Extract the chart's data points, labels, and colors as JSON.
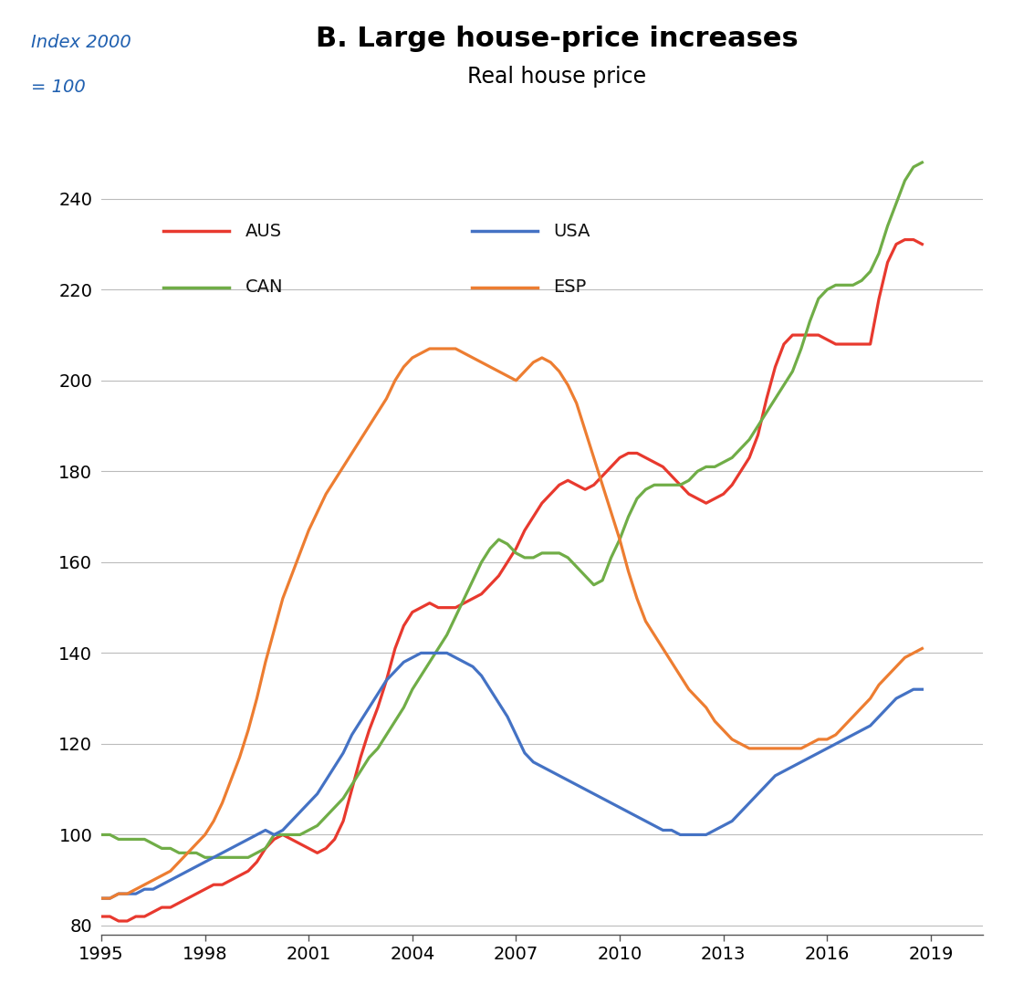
{
  "title": "B. Large house-price increases",
  "subtitle": "Real house price",
  "ylabel_line1": "Index 2000",
  "ylabel_line2": "= 100",
  "title_fontsize": 22,
  "subtitle_fontsize": 17,
  "ylabel_fontsize": 14,
  "tick_fontsize": 14,
  "background_color": "#ffffff",
  "xlim": [
    1995,
    2020.5
  ],
  "ylim": [
    78,
    255
  ],
  "yticks": [
    80,
    100,
    120,
    140,
    160,
    180,
    200,
    220,
    240
  ],
  "xticks": [
    1995,
    1998,
    2001,
    2004,
    2007,
    2010,
    2013,
    2016,
    2019
  ],
  "grid_color": "#bbbbbb",
  "series": {
    "AUS": {
      "color": "#e8392e",
      "linewidth": 2.3,
      "x": [
        1995.0,
        1995.25,
        1995.5,
        1995.75,
        1996.0,
        1996.25,
        1996.5,
        1996.75,
        1997.0,
        1997.25,
        1997.5,
        1997.75,
        1998.0,
        1998.25,
        1998.5,
        1998.75,
        1999.0,
        1999.25,
        1999.5,
        1999.75,
        2000.0,
        2000.25,
        2000.5,
        2000.75,
        2001.0,
        2001.25,
        2001.5,
        2001.75,
        2002.0,
        2002.25,
        2002.5,
        2002.75,
        2003.0,
        2003.25,
        2003.5,
        2003.75,
        2004.0,
        2004.25,
        2004.5,
        2004.75,
        2005.0,
        2005.25,
        2005.5,
        2005.75,
        2006.0,
        2006.25,
        2006.5,
        2006.75,
        2007.0,
        2007.25,
        2007.5,
        2007.75,
        2008.0,
        2008.25,
        2008.5,
        2008.75,
        2009.0,
        2009.25,
        2009.5,
        2009.75,
        2010.0,
        2010.25,
        2010.5,
        2010.75,
        2011.0,
        2011.25,
        2011.5,
        2011.75,
        2012.0,
        2012.25,
        2012.5,
        2012.75,
        2013.0,
        2013.25,
        2013.5,
        2013.75,
        2014.0,
        2014.25,
        2014.5,
        2014.75,
        2015.0,
        2015.25,
        2015.5,
        2015.75,
        2016.0,
        2016.25,
        2016.5,
        2016.75,
        2017.0,
        2017.25,
        2017.5,
        2017.75,
        2018.0,
        2018.25,
        2018.5,
        2018.75
      ],
      "y": [
        82,
        82,
        81,
        81,
        82,
        82,
        83,
        84,
        84,
        85,
        86,
        87,
        88,
        89,
        89,
        90,
        91,
        92,
        94,
        97,
        99,
        100,
        99,
        98,
        97,
        96,
        97,
        99,
        103,
        110,
        117,
        123,
        128,
        134,
        141,
        146,
        149,
        150,
        151,
        150,
        150,
        150,
        151,
        152,
        153,
        155,
        157,
        160,
        163,
        167,
        170,
        173,
        175,
        177,
        178,
        177,
        176,
        177,
        179,
        181,
        183,
        184,
        184,
        183,
        182,
        181,
        179,
        177,
        175,
        174,
        173,
        174,
        175,
        177,
        180,
        183,
        188,
        196,
        203,
        208,
        210,
        210,
        210,
        210,
        209,
        208,
        208,
        208,
        208,
        208,
        218,
        226,
        230,
        231,
        231,
        230
      ]
    },
    "CAN": {
      "color": "#70ad47",
      "linewidth": 2.3,
      "x": [
        1995.0,
        1995.25,
        1995.5,
        1995.75,
        1996.0,
        1996.25,
        1996.5,
        1996.75,
        1997.0,
        1997.25,
        1997.5,
        1997.75,
        1998.0,
        1998.25,
        1998.5,
        1998.75,
        1999.0,
        1999.25,
        1999.5,
        1999.75,
        2000.0,
        2000.25,
        2000.5,
        2000.75,
        2001.0,
        2001.25,
        2001.5,
        2001.75,
        2002.0,
        2002.25,
        2002.5,
        2002.75,
        2003.0,
        2003.25,
        2003.5,
        2003.75,
        2004.0,
        2004.25,
        2004.5,
        2004.75,
        2005.0,
        2005.25,
        2005.5,
        2005.75,
        2006.0,
        2006.25,
        2006.5,
        2006.75,
        2007.0,
        2007.25,
        2007.5,
        2007.75,
        2008.0,
        2008.25,
        2008.5,
        2008.75,
        2009.0,
        2009.25,
        2009.5,
        2009.75,
        2010.0,
        2010.25,
        2010.5,
        2010.75,
        2011.0,
        2011.25,
        2011.5,
        2011.75,
        2012.0,
        2012.25,
        2012.5,
        2012.75,
        2013.0,
        2013.25,
        2013.5,
        2013.75,
        2014.0,
        2014.25,
        2014.5,
        2014.75,
        2015.0,
        2015.25,
        2015.5,
        2015.75,
        2016.0,
        2016.25,
        2016.5,
        2016.75,
        2017.0,
        2017.25,
        2017.5,
        2017.75,
        2018.0,
        2018.25,
        2018.5,
        2018.75
      ],
      "y": [
        100,
        100,
        99,
        99,
        99,
        99,
        98,
        97,
        97,
        96,
        96,
        96,
        95,
        95,
        95,
        95,
        95,
        95,
        96,
        97,
        100,
        100,
        100,
        100,
        101,
        102,
        104,
        106,
        108,
        111,
        114,
        117,
        119,
        122,
        125,
        128,
        132,
        135,
        138,
        141,
        144,
        148,
        152,
        156,
        160,
        163,
        165,
        164,
        162,
        161,
        161,
        162,
        162,
        162,
        161,
        159,
        157,
        155,
        156,
        161,
        165,
        170,
        174,
        176,
        177,
        177,
        177,
        177,
        178,
        180,
        181,
        181,
        182,
        183,
        185,
        187,
        190,
        193,
        196,
        199,
        202,
        207,
        213,
        218,
        220,
        221,
        221,
        221,
        222,
        224,
        228,
        234,
        239,
        244,
        247,
        248
      ]
    },
    "USA": {
      "color": "#4472c4",
      "linewidth": 2.3,
      "x": [
        1995.0,
        1995.25,
        1995.5,
        1995.75,
        1996.0,
        1996.25,
        1996.5,
        1996.75,
        1997.0,
        1997.25,
        1997.5,
        1997.75,
        1998.0,
        1998.25,
        1998.5,
        1998.75,
        1999.0,
        1999.25,
        1999.5,
        1999.75,
        2000.0,
        2000.25,
        2000.5,
        2000.75,
        2001.0,
        2001.25,
        2001.5,
        2001.75,
        2002.0,
        2002.25,
        2002.5,
        2002.75,
        2003.0,
        2003.25,
        2003.5,
        2003.75,
        2004.0,
        2004.25,
        2004.5,
        2004.75,
        2005.0,
        2005.25,
        2005.5,
        2005.75,
        2006.0,
        2006.25,
        2006.5,
        2006.75,
        2007.0,
        2007.25,
        2007.5,
        2007.75,
        2008.0,
        2008.25,
        2008.5,
        2008.75,
        2009.0,
        2009.25,
        2009.5,
        2009.75,
        2010.0,
        2010.25,
        2010.5,
        2010.75,
        2011.0,
        2011.25,
        2011.5,
        2011.75,
        2012.0,
        2012.25,
        2012.5,
        2012.75,
        2013.0,
        2013.25,
        2013.5,
        2013.75,
        2014.0,
        2014.25,
        2014.5,
        2014.75,
        2015.0,
        2015.25,
        2015.5,
        2015.75,
        2016.0,
        2016.25,
        2016.5,
        2016.75,
        2017.0,
        2017.25,
        2017.5,
        2017.75,
        2018.0,
        2018.25,
        2018.5,
        2018.75
      ],
      "y": [
        86,
        86,
        87,
        87,
        87,
        88,
        88,
        89,
        90,
        91,
        92,
        93,
        94,
        95,
        96,
        97,
        98,
        99,
        100,
        101,
        100,
        101,
        103,
        105,
        107,
        109,
        112,
        115,
        118,
        122,
        125,
        128,
        131,
        134,
        136,
        138,
        139,
        140,
        140,
        140,
        140,
        139,
        138,
        137,
        135,
        132,
        129,
        126,
        122,
        118,
        116,
        115,
        114,
        113,
        112,
        111,
        110,
        109,
        108,
        107,
        106,
        105,
        104,
        103,
        102,
        101,
        101,
        100,
        100,
        100,
        100,
        101,
        102,
        103,
        105,
        107,
        109,
        111,
        113,
        114,
        115,
        116,
        117,
        118,
        119,
        120,
        121,
        122,
        123,
        124,
        126,
        128,
        130,
        131,
        132,
        132
      ]
    },
    "ESP": {
      "color": "#ed7d31",
      "linewidth": 2.3,
      "x": [
        1995.0,
        1995.25,
        1995.5,
        1995.75,
        1996.0,
        1996.25,
        1996.5,
        1996.75,
        1997.0,
        1997.25,
        1997.5,
        1997.75,
        1998.0,
        1998.25,
        1998.5,
        1998.75,
        1999.0,
        1999.25,
        1999.5,
        1999.75,
        2000.0,
        2000.25,
        2000.5,
        2000.75,
        2001.0,
        2001.25,
        2001.5,
        2001.75,
        2002.0,
        2002.25,
        2002.5,
        2002.75,
        2003.0,
        2003.25,
        2003.5,
        2003.75,
        2004.0,
        2004.25,
        2004.5,
        2004.75,
        2005.0,
        2005.25,
        2005.5,
        2005.75,
        2006.0,
        2006.25,
        2006.5,
        2006.75,
        2007.0,
        2007.25,
        2007.5,
        2007.75,
        2008.0,
        2008.25,
        2008.5,
        2008.75,
        2009.0,
        2009.25,
        2009.5,
        2009.75,
        2010.0,
        2010.25,
        2010.5,
        2010.75,
        2011.0,
        2011.25,
        2011.5,
        2011.75,
        2012.0,
        2012.25,
        2012.5,
        2012.75,
        2013.0,
        2013.25,
        2013.5,
        2013.75,
        2014.0,
        2014.25,
        2014.5,
        2014.75,
        2015.0,
        2015.25,
        2015.5,
        2015.75,
        2016.0,
        2016.25,
        2016.5,
        2016.75,
        2017.0,
        2017.25,
        2017.5,
        2017.75,
        2018.0,
        2018.25,
        2018.5,
        2018.75
      ],
      "y": [
        86,
        86,
        87,
        87,
        88,
        89,
        90,
        91,
        92,
        94,
        96,
        98,
        100,
        103,
        107,
        112,
        117,
        123,
        130,
        138,
        145,
        152,
        157,
        162,
        167,
        171,
        175,
        178,
        181,
        184,
        187,
        190,
        193,
        196,
        200,
        203,
        205,
        206,
        207,
        207,
        207,
        207,
        206,
        205,
        204,
        203,
        202,
        201,
        200,
        202,
        204,
        205,
        204,
        202,
        199,
        195,
        189,
        183,
        177,
        171,
        165,
        158,
        152,
        147,
        144,
        141,
        138,
        135,
        132,
        130,
        128,
        125,
        123,
        121,
        120,
        119,
        119,
        119,
        119,
        119,
        119,
        119,
        120,
        121,
        121,
        122,
        124,
        126,
        128,
        130,
        133,
        135,
        137,
        139,
        140,
        141
      ]
    }
  },
  "legend": [
    {
      "label": "AUS",
      "color": "#e8392e",
      "row": 0,
      "col": 0
    },
    {
      "label": "USA",
      "color": "#4472c4",
      "row": 0,
      "col": 1
    },
    {
      "label": "CAN",
      "color": "#70ad47",
      "row": 1,
      "col": 0
    },
    {
      "label": "ESP",
      "color": "#ed7d31",
      "row": 1,
      "col": 1
    }
  ]
}
